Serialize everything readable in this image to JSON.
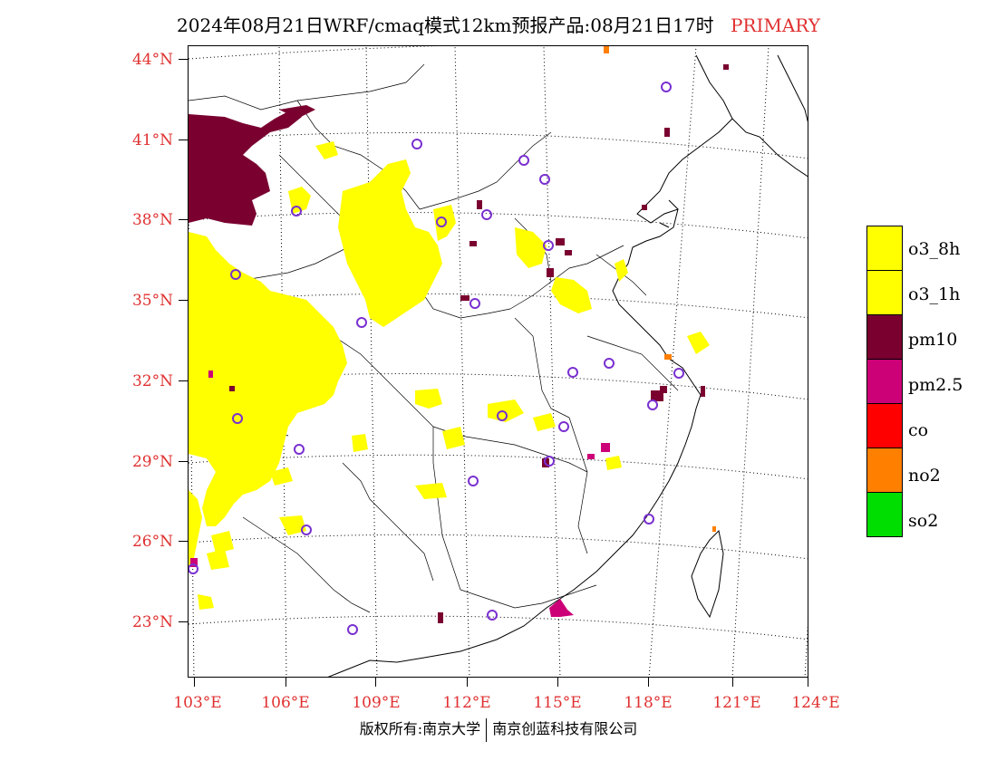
{
  "title": {
    "main": "2024年08月21日WRF/cmaq模式12km预报产品:08月21日17时",
    "tag": "PRIMARY"
  },
  "lat_labels": [
    "44°N",
    "41°N",
    "38°N",
    "35°N",
    "32°N",
    "29°N",
    "26°N",
    "23°N"
  ],
  "lon_labels": [
    "103°E",
    "106°E",
    "109°E",
    "112°E",
    "115°E",
    "118°E",
    "121°E",
    "124°E"
  ],
  "legend": [
    {
      "label": "o3_8h",
      "color": "#ffff00"
    },
    {
      "label": "o3_1h",
      "color": "#ffff00"
    },
    {
      "label": "pm10",
      "color": "#7a0030"
    },
    {
      "label": "pm2.5",
      "color": "#cc0077"
    },
    {
      "label": "co",
      "color": "#ff0000"
    },
    {
      "label": "no2",
      "color": "#ff7f00"
    },
    {
      "label": "so2",
      "color": "#00dd00"
    }
  ],
  "footer": {
    "left": "版权所有:南京大学",
    "right": "南京创蓝科技有限公司"
  }
}
